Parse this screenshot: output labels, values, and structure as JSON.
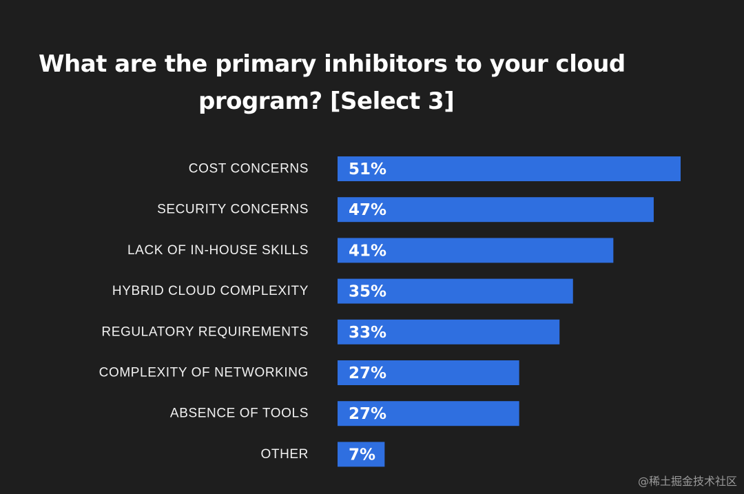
{
  "chart_data": {
    "type": "bar",
    "orientation": "horizontal",
    "title": {
      "line1": "What are the primary inhibitors to your cloud",
      "line2": "program? [Select 3]"
    },
    "categories": [
      "COST CONCERNS",
      "SECURITY CONCERNS",
      "LACK OF IN-HOUSE SKILLS",
      "HYBRID CLOUD COMPLEXITY",
      "REGULATORY REQUIREMENTS",
      "COMPLEXITY OF NETWORKING",
      "ABSENCE OF TOOLS",
      "OTHER"
    ],
    "values": [
      51,
      47,
      41,
      35,
      33,
      27,
      27,
      7
    ],
    "value_labels": [
      "51%",
      "47%",
      "41%",
      "35%",
      "33%",
      "27%",
      "27%",
      "7%"
    ],
    "unit": "%",
    "grid": false,
    "legend": "none",
    "colors": {
      "bar": "#2f6fe0",
      "background": "#1e1e1e",
      "text": "#ffffff"
    }
  },
  "watermark": "@稀土掘金技术社区"
}
